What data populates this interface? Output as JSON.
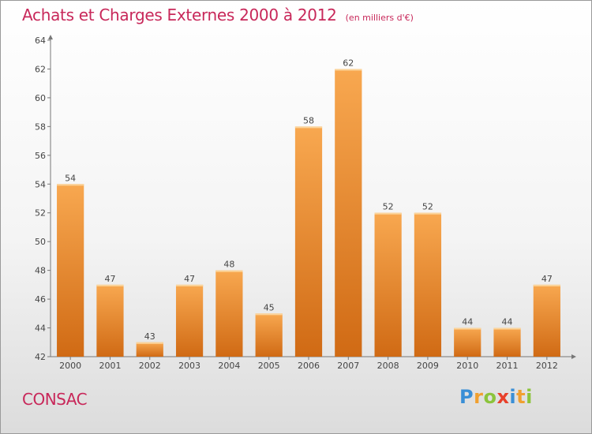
{
  "header": {
    "title": "Achats et Charges Externes 2000 à 2012",
    "subtitle": "(en milliers d'€)"
  },
  "footer": {
    "commune": "CONSAC",
    "logo_letters": [
      {
        "ch": "P",
        "color": "#3a8fd6"
      },
      {
        "ch": "r",
        "color": "#f0a030"
      },
      {
        "ch": "o",
        "color": "#8cc43c"
      },
      {
        "ch": "x",
        "color": "#e8402a"
      },
      {
        "ch": "i",
        "color": "#3a8fd6"
      },
      {
        "ch": "t",
        "color": "#f0a030"
      },
      {
        "ch": "i",
        "color": "#8cc43c"
      }
    ]
  },
  "chart_data": {
    "type": "bar",
    "title": "Achats et Charges Externes 2000 à 2012",
    "subtitle": "(en milliers d'€)",
    "categories": [
      "2000",
      "2001",
      "2002",
      "2003",
      "2004",
      "2005",
      "2006",
      "2007",
      "2008",
      "2009",
      "2010",
      "2011",
      "2012"
    ],
    "values": [
      54,
      47,
      43,
      47,
      48,
      45,
      58,
      62,
      52,
      52,
      44,
      44,
      47
    ],
    "ylim": [
      42,
      64
    ],
    "yticks": [
      42,
      44,
      46,
      48,
      50,
      52,
      54,
      56,
      58,
      60,
      62,
      64
    ],
    "grid": false,
    "bar_color_top": "#f8a850",
    "bar_color_bottom": "#d06a14"
  }
}
